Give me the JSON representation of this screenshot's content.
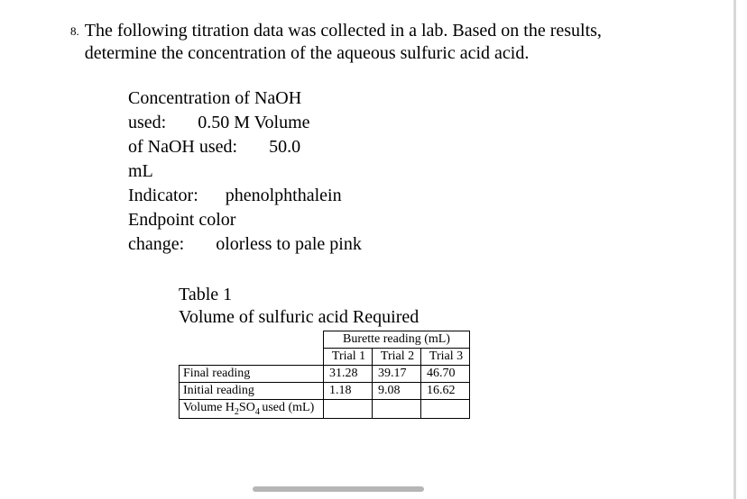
{
  "question": {
    "number": "8.",
    "text": "The following titration data was collected in a lab. Based on the results, determine the concentration of the aqueous sulfuric acid acid."
  },
  "info": {
    "line1a": "Concentration of NaOH",
    "line1b": "used:",
    "conc_value": "0.50 M Volume",
    "line2a": "of NaOH used:",
    "vol_value": "50.0",
    "line2b": "mL",
    "indicator_label": "Indicator:",
    "indicator_value": "phenolphthalein",
    "endpoint_label1": "Endpoint color",
    "endpoint_label2": "change:",
    "endpoint_value": "olorless to pale pink"
  },
  "table": {
    "caption_line1": "Table 1",
    "caption_line2": "Volume of sulfuric acid Required",
    "burette_header": "Burette reading (mL)",
    "trial_labels": [
      "Trial 1",
      "Trial 2",
      "Trial 3"
    ],
    "rows": [
      {
        "label": "Final reading",
        "values": [
          "31.28",
          "39.17",
          "46.70"
        ]
      },
      {
        "label": "Initial reading",
        "values": [
          "1.18",
          "9.08",
          "16.62"
        ]
      },
      {
        "label_prefix": "Volume H",
        "label_sub": "2",
        "label_mid": "SO",
        "label_sub2": "4 ",
        "label_suffix": "used (mL)",
        "values": [
          "",
          "",
          ""
        ]
      }
    ]
  },
  "colors": {
    "text": "#000000",
    "background": "#ffffff",
    "border": "#000000",
    "scrollbar_v": "#d8d8d8",
    "scrollbar_h": "#b6b6b6"
  }
}
